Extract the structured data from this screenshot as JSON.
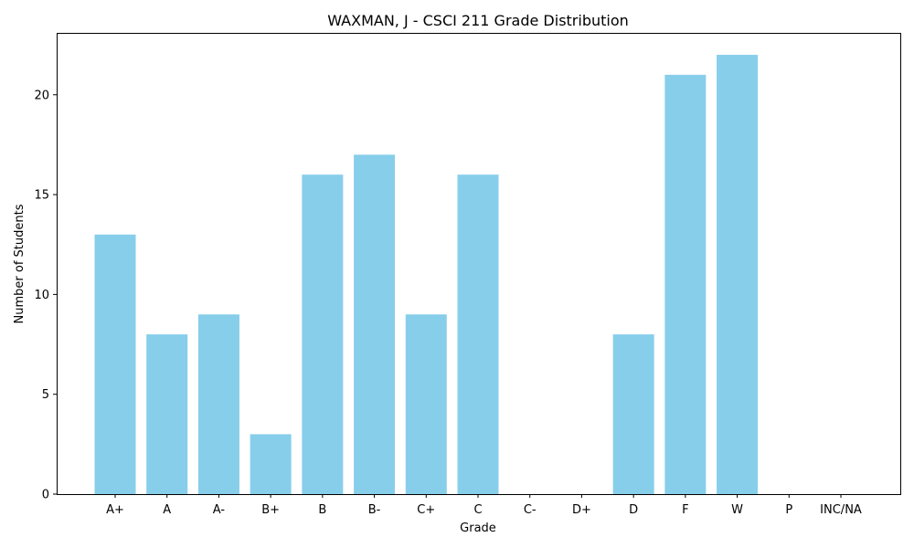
{
  "chart_data": {
    "type": "bar",
    "title": "WAXMAN, J - CSCI 211 Grade Distribution",
    "xlabel": "Grade",
    "ylabel": "Number of Students",
    "categories": [
      "A+",
      "A",
      "A-",
      "B+",
      "B",
      "B-",
      "C+",
      "C",
      "C-",
      "D+",
      "D",
      "F",
      "W",
      "P",
      "INC/NA"
    ],
    "values": [
      13,
      8,
      9,
      3,
      16,
      17,
      9,
      16,
      0,
      0,
      8,
      21,
      22,
      0,
      0
    ],
    "ylim": [
      0,
      23.1
    ],
    "yticks": [
      0,
      5,
      10,
      15,
      20
    ],
    "grid": false,
    "bar_color": "#87CEEB"
  }
}
